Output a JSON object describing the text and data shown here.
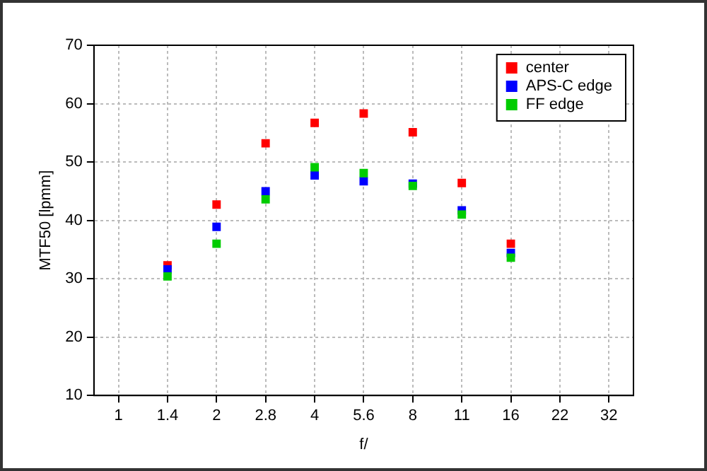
{
  "chart_data": {
    "type": "scatter",
    "xlabel": "f/",
    "ylabel": "MTF50 [lpmm]",
    "categories": [
      "1",
      "1.4",
      "2",
      "2.8",
      "4",
      "5.6",
      "8",
      "11",
      "16",
      "22",
      "32"
    ],
    "series": [
      {
        "name": "center",
        "color": "#ff0000",
        "values": [
          null,
          32.3,
          42.7,
          53.2,
          56.7,
          58.3,
          55.1,
          46.4,
          36.0,
          null,
          null
        ]
      },
      {
        "name": "APS-C edge",
        "color": "#0000ff",
        "values": [
          null,
          31.6,
          38.9,
          45.0,
          47.7,
          46.7,
          46.3,
          41.7,
          34.4,
          null,
          null
        ]
      },
      {
        "name": "FF edge",
        "color": "#00cc00",
        "values": [
          null,
          30.4,
          36.0,
          43.6,
          49.1,
          48.1,
          45.9,
          41.0,
          33.6,
          null,
          null
        ]
      }
    ],
    "ylim": [
      10,
      70
    ],
    "yticks": [
      10,
      20,
      30,
      40,
      50,
      60,
      70
    ],
    "grid": true,
    "legend": "top right",
    "marker": "square"
  }
}
